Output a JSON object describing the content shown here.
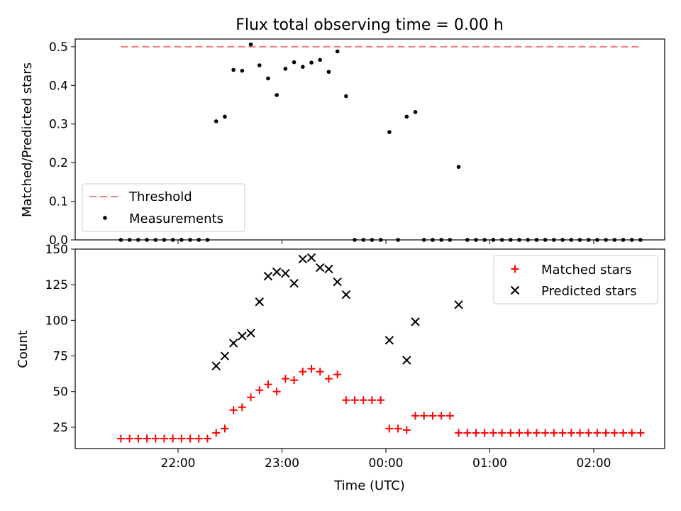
{
  "chart_data": [
    {
      "type": "scatter",
      "title": "Flux total observing time = 0.00 h",
      "xlabel": "",
      "ylabel": "Matched/Predicted stars",
      "ylim": [
        0,
        0.52
      ],
      "yticks": [
        "0.0",
        "0.1",
        "0.2",
        "0.3",
        "0.4",
        "0.5"
      ],
      "threshold": {
        "name": "Threshold",
        "value": 0.5,
        "x_start": "21:27",
        "x_end": "02:27",
        "color": "#f08080"
      },
      "legend": {
        "position": "lower-left"
      },
      "series": [
        {
          "name": "Measurements",
          "color": "#000000",
          "points": [
            [
              "21:27",
              0
            ],
            [
              "21:32",
              0
            ],
            [
              "21:37",
              0
            ],
            [
              "21:42",
              0
            ],
            [
              "21:47",
              0
            ],
            [
              "21:52",
              0
            ],
            [
              "21:57",
              0
            ],
            [
              "22:02",
              0
            ],
            [
              "22:07",
              0
            ],
            [
              "22:12",
              0
            ],
            [
              "22:17",
              0
            ],
            [
              "22:22",
              0.307
            ],
            [
              "22:27",
              0.319
            ],
            [
              "22:32",
              0.44
            ],
            [
              "22:37",
              0.438
            ],
            [
              "22:42",
              0.506
            ],
            [
              "22:47",
              0.452
            ],
            [
              "22:52",
              0.418
            ],
            [
              "22:57",
              0.375
            ],
            [
              "23:02",
              0.443
            ],
            [
              "23:07",
              0.46
            ],
            [
              "23:12",
              0.448
            ],
            [
              "23:17",
              0.459
            ],
            [
              "23:22",
              0.466
            ],
            [
              "23:27",
              0.435
            ],
            [
              "23:32",
              0.488
            ],
            [
              "23:37",
              0.372
            ],
            [
              "23:42",
              0
            ],
            [
              "23:47",
              0
            ],
            [
              "23:52",
              0
            ],
            [
              "23:57",
              0
            ],
            [
              "00:02",
              0.279
            ],
            [
              "00:07",
              0
            ],
            [
              "00:12",
              0.319
            ],
            [
              "00:17",
              0.331
            ],
            [
              "00:22",
              0
            ],
            [
              "00:27",
              0
            ],
            [
              "00:32",
              0
            ],
            [
              "00:37",
              0
            ],
            [
              "00:42",
              0.189
            ],
            [
              "00:47",
              0
            ],
            [
              "00:52",
              0
            ],
            [
              "00:57",
              0
            ],
            [
              "01:02",
              0
            ],
            [
              "01:07",
              0
            ],
            [
              "01:12",
              0
            ],
            [
              "01:17",
              0
            ],
            [
              "01:22",
              0
            ],
            [
              "01:27",
              0
            ],
            [
              "01:32",
              0
            ],
            [
              "01:37",
              0
            ],
            [
              "01:42",
              0
            ],
            [
              "01:47",
              0
            ],
            [
              "01:52",
              0
            ],
            [
              "01:57",
              0
            ],
            [
              "02:02",
              0
            ],
            [
              "02:07",
              0
            ],
            [
              "02:12",
              0
            ],
            [
              "02:17",
              0
            ],
            [
              "02:22",
              0
            ],
            [
              "02:27",
              0
            ]
          ]
        }
      ]
    },
    {
      "type": "scatter",
      "title": "",
      "xlabel": "Time (UTC)",
      "ylabel": "Count",
      "ylim": [
        10,
        150
      ],
      "yticks": [
        "25",
        "50",
        "75",
        "100",
        "125",
        "150"
      ],
      "xticks": [
        "22:00",
        "23:00",
        "00:00",
        "01:00",
        "02:00"
      ],
      "legend": {
        "position": "top-right"
      },
      "series": [
        {
          "name": "Matched stars",
          "color": "#ff0000",
          "marker": "+",
          "points": [
            [
              "21:27",
              17
            ],
            [
              "21:32",
              17
            ],
            [
              "21:37",
              17
            ],
            [
              "21:42",
              17
            ],
            [
              "21:47",
              17
            ],
            [
              "21:52",
              17
            ],
            [
              "21:57",
              17
            ],
            [
              "22:02",
              17
            ],
            [
              "22:07",
              17
            ],
            [
              "22:12",
              17
            ],
            [
              "22:17",
              17
            ],
            [
              "22:22",
              21
            ],
            [
              "22:27",
              24
            ],
            [
              "22:32",
              37
            ],
            [
              "22:37",
              39
            ],
            [
              "22:42",
              46
            ],
            [
              "22:47",
              51
            ],
            [
              "22:52",
              55
            ],
            [
              "22:57",
              50
            ],
            [
              "23:02",
              59
            ],
            [
              "23:07",
              58
            ],
            [
              "23:12",
              64
            ],
            [
              "23:17",
              66
            ],
            [
              "23:22",
              64
            ],
            [
              "23:27",
              59
            ],
            [
              "23:32",
              62
            ],
            [
              "23:37",
              44
            ],
            [
              "23:42",
              44
            ],
            [
              "23:47",
              44
            ],
            [
              "23:52",
              44
            ],
            [
              "23:57",
              44
            ],
            [
              "00:02",
              24
            ],
            [
              "00:07",
              24
            ],
            [
              "00:12",
              23
            ],
            [
              "00:17",
              33
            ],
            [
              "00:22",
              33
            ],
            [
              "00:27",
              33
            ],
            [
              "00:32",
              33
            ],
            [
              "00:37",
              33
            ],
            [
              "00:42",
              21
            ],
            [
              "00:47",
              21
            ],
            [
              "00:52",
              21
            ],
            [
              "00:57",
              21
            ],
            [
              "01:02",
              21
            ],
            [
              "01:07",
              21
            ],
            [
              "01:12",
              21
            ],
            [
              "01:17",
              21
            ],
            [
              "01:22",
              21
            ],
            [
              "01:27",
              21
            ],
            [
              "01:32",
              21
            ],
            [
              "01:37",
              21
            ],
            [
              "01:42",
              21
            ],
            [
              "01:47",
              21
            ],
            [
              "01:52",
              21
            ],
            [
              "01:57",
              21
            ],
            [
              "02:02",
              21
            ],
            [
              "02:07",
              21
            ],
            [
              "02:12",
              21
            ],
            [
              "02:17",
              21
            ],
            [
              "02:22",
              21
            ],
            [
              "02:27",
              21
            ]
          ]
        },
        {
          "name": "Predicted stars",
          "color": "#000000",
          "marker": "x",
          "points": [
            [
              "22:22",
              68
            ],
            [
              "22:27",
              75
            ],
            [
              "22:32",
              84
            ],
            [
              "22:37",
              89
            ],
            [
              "22:42",
              91
            ],
            [
              "22:47",
              113
            ],
            [
              "22:52",
              131
            ],
            [
              "22:57",
              134
            ],
            [
              "23:02",
              133
            ],
            [
              "23:07",
              126
            ],
            [
              "23:12",
              143
            ],
            [
              "23:17",
              144
            ],
            [
              "23:22",
              137
            ],
            [
              "23:27",
              136
            ],
            [
              "23:32",
              127
            ],
            [
              "23:37",
              118
            ],
            [
              "00:02",
              86
            ],
            [
              "00:12",
              72
            ],
            [
              "00:17",
              99
            ],
            [
              "00:42",
              111
            ]
          ]
        }
      ]
    }
  ]
}
